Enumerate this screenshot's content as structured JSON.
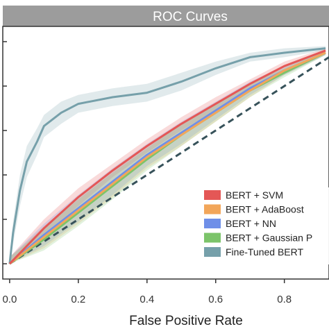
{
  "chart_data": {
    "type": "line",
    "title": "ROC Curves",
    "xlabel": "False Positive Rate",
    "ylabel": "",
    "xlim": [
      -0.02,
      0.93
    ],
    "ylim": [
      0,
      1
    ],
    "xticks": [
      "0.0",
      "0.2",
      "0.4",
      "0.6",
      "0.8"
    ],
    "grid": false,
    "legend": "bottom-right",
    "diagonal": {
      "x": [
        0,
        1
      ],
      "y": [
        0,
        1
      ],
      "color": "#37525a",
      "style": "dashed"
    },
    "series": [
      {
        "name": "BERT + SVM",
        "color": "#e45756",
        "x": [
          0,
          0.1,
          0.2,
          0.3,
          0.4,
          0.5,
          0.6,
          0.7,
          0.8,
          0.92
        ],
        "y": [
          0,
          0.16,
          0.3,
          0.42,
          0.53,
          0.63,
          0.72,
          0.81,
          0.89,
          0.96
        ],
        "band": [
          0.03,
          0.04,
          0.04,
          0.03,
          0.03,
          0.03,
          0.03,
          0.02,
          0.02,
          0.01
        ]
      },
      {
        "name": "BERT + AdaBoost",
        "color": "#f2a65a",
        "x": [
          0,
          0.1,
          0.2,
          0.3,
          0.4,
          0.5,
          0.6,
          0.7,
          0.8,
          0.92
        ],
        "y": [
          0,
          0.12,
          0.24,
          0.36,
          0.48,
          0.58,
          0.68,
          0.78,
          0.87,
          0.95
        ],
        "band": [
          0.03,
          0.05,
          0.06,
          0.06,
          0.05,
          0.05,
          0.04,
          0.03,
          0.02,
          0.01
        ]
      },
      {
        "name": "BERT + NN",
        "color": "#6f8fe8",
        "x": [
          0,
          0.1,
          0.2,
          0.3,
          0.4,
          0.5,
          0.6,
          0.7,
          0.8,
          0.92
        ],
        "y": [
          0,
          0.13,
          0.25,
          0.37,
          0.49,
          0.59,
          0.69,
          0.79,
          0.87,
          0.95
        ],
        "band": [
          0.03,
          0.05,
          0.06,
          0.06,
          0.05,
          0.05,
          0.04,
          0.03,
          0.02,
          0.01
        ]
      },
      {
        "name": "BERT + Gaussian P",
        "color": "#7cc46a",
        "x": [
          0,
          0.1,
          0.2,
          0.3,
          0.4,
          0.5,
          0.6,
          0.7,
          0.8,
          0.92
        ],
        "y": [
          0,
          0.11,
          0.23,
          0.35,
          0.47,
          0.58,
          0.68,
          0.78,
          0.86,
          0.95
        ],
        "band": [
          0.03,
          0.05,
          0.06,
          0.06,
          0.05,
          0.05,
          0.04,
          0.03,
          0.02,
          0.01
        ]
      },
      {
        "name": "Fine-Tuned BERT",
        "color": "#76a0aa",
        "x": [
          0,
          0.01,
          0.03,
          0.05,
          0.08,
          0.1,
          0.15,
          0.2,
          0.3,
          0.4,
          0.5,
          0.6,
          0.7,
          0.8,
          0.92
        ],
        "y": [
          0,
          0.14,
          0.33,
          0.46,
          0.55,
          0.62,
          0.68,
          0.72,
          0.75,
          0.77,
          0.82,
          0.88,
          0.93,
          0.95,
          0.97
        ],
        "band": [
          0.02,
          0.05,
          0.07,
          0.07,
          0.06,
          0.05,
          0.05,
          0.04,
          0.04,
          0.04,
          0.04,
          0.03,
          0.02,
          0.02,
          0.01
        ]
      }
    ]
  }
}
